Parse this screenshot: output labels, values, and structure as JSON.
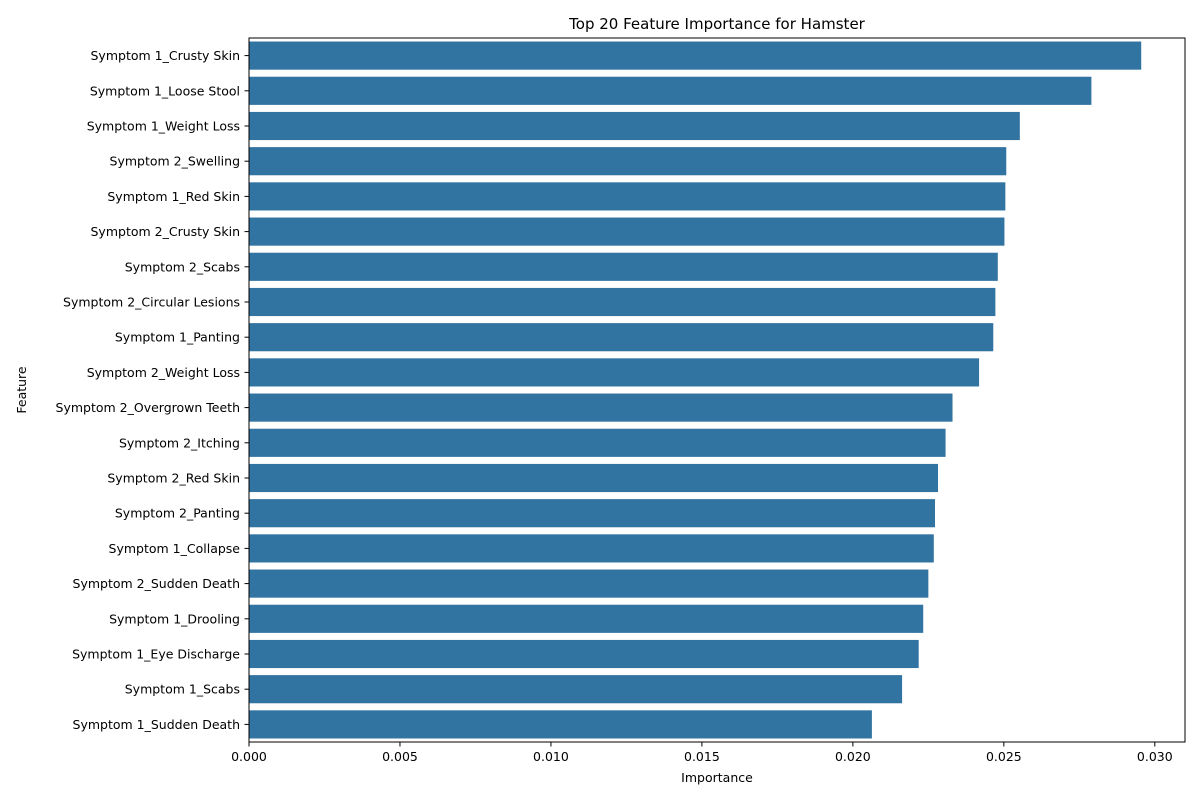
{
  "chart_data": {
    "type": "bar",
    "orientation": "horizontal",
    "title": "Top 20 Feature Importance for Hamster",
    "xlabel": "Importance",
    "ylabel": "Feature",
    "xlim": [
      0,
      0.031
    ],
    "xticks": [
      0.0,
      0.005,
      0.01,
      0.015,
      0.02,
      0.025,
      0.03
    ],
    "xtick_labels": [
      "0.000",
      "0.005",
      "0.010",
      "0.015",
      "0.020",
      "0.025",
      "0.030"
    ],
    "grid": false,
    "legend": "none",
    "bar_color": "#3274a1",
    "categories": [
      "Symptom 1_Crusty Skin",
      "Symptom 1_Loose Stool",
      "Symptom 1_Weight Loss",
      "Symptom 2_Swelling",
      "Symptom 1_Red Skin",
      "Symptom 2_Crusty Skin",
      "Symptom 2_Scabs",
      "Symptom 2_Circular Lesions",
      "Symptom 1_Panting",
      "Symptom 2_Weight Loss",
      "Symptom 2_Overgrown Teeth",
      "Symptom 2_Itching",
      "Symptom 2_Red Skin",
      "Symptom 2_Panting",
      "Symptom 1_Collapse",
      "Symptom 2_Sudden Death",
      "Symptom 1_Drooling",
      "Symptom 1_Eye Discharge",
      "Symptom 1_Scabs",
      "Symptom 1_Sudden Death"
    ],
    "values": [
      0.02955,
      0.0279,
      0.02553,
      0.02508,
      0.02505,
      0.02502,
      0.0248,
      0.02472,
      0.02465,
      0.02418,
      0.0233,
      0.02307,
      0.02282,
      0.02272,
      0.02268,
      0.0225,
      0.02233,
      0.02218,
      0.02163,
      0.02063
    ]
  }
}
